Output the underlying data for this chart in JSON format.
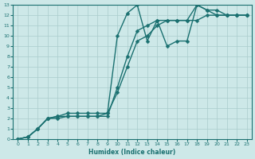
{
  "bg_color": "#cde8e8",
  "grid_color": "#aacccc",
  "line_color": "#1a7070",
  "marker": "D",
  "markersize": 2.5,
  "linewidth": 1.0,
  "xlabel": "Humidex (Indice chaleur)",
  "xlim": [
    -0.5,
    23.5
  ],
  "ylim": [
    0,
    13
  ],
  "xticks": [
    0,
    1,
    2,
    3,
    4,
    5,
    6,
    7,
    8,
    9,
    10,
    11,
    12,
    13,
    14,
    15,
    16,
    17,
    18,
    19,
    20,
    21,
    22,
    23
  ],
  "yticks": [
    0,
    1,
    2,
    3,
    4,
    5,
    6,
    7,
    8,
    9,
    10,
    11,
    12,
    13
  ],
  "series": [
    [
      [
        0,
        0
      ],
      [
        1,
        0.2
      ],
      [
        2,
        1
      ],
      [
        3,
        2
      ],
      [
        4,
        2.2
      ],
      [
        5,
        2.5
      ],
      [
        6,
        2.5
      ],
      [
        7,
        2.5
      ],
      [
        8,
        2.5
      ],
      [
        9,
        2.5
      ],
      [
        10,
        4.5
      ],
      [
        11,
        7
      ],
      [
        12,
        9.5
      ],
      [
        13,
        10
      ],
      [
        14,
        11
      ],
      [
        15,
        11.5
      ],
      [
        16,
        11.5
      ],
      [
        17,
        11.5
      ],
      [
        18,
        11.5
      ],
      [
        19,
        12
      ],
      [
        20,
        12
      ],
      [
        21,
        12
      ],
      [
        22,
        12
      ],
      [
        23,
        12
      ]
    ],
    [
      [
        0,
        0
      ],
      [
        1,
        0.2
      ],
      [
        2,
        1
      ],
      [
        3,
        2
      ],
      [
        4,
        2
      ],
      [
        5,
        2.2
      ],
      [
        6,
        2.2
      ],
      [
        7,
        2.2
      ],
      [
        8,
        2.2
      ],
      [
        9,
        2.5
      ],
      [
        10,
        10
      ],
      [
        11,
        12.2
      ],
      [
        12,
        13
      ],
      [
        13,
        9.5
      ],
      [
        14,
        11.5
      ],
      [
        15,
        9
      ],
      [
        16,
        9.5
      ],
      [
        17,
        9.5
      ],
      [
        18,
        13
      ],
      [
        19,
        12.5
      ],
      [
        20,
        12
      ],
      [
        21,
        12
      ],
      [
        22,
        12
      ],
      [
        23,
        12
      ]
    ],
    [
      [
        0,
        0
      ],
      [
        1,
        0.2
      ],
      [
        2,
        1
      ],
      [
        3,
        2
      ],
      [
        4,
        2.2
      ],
      [
        5,
        2.2
      ],
      [
        6,
        2.2
      ],
      [
        7,
        2.2
      ],
      [
        8,
        2.2
      ],
      [
        9,
        2.2
      ],
      [
        10,
        5
      ],
      [
        11,
        8
      ],
      [
        12,
        10.5
      ],
      [
        13,
        11
      ],
      [
        14,
        11.5
      ],
      [
        15,
        11.5
      ],
      [
        16,
        11.5
      ],
      [
        17,
        11.5
      ],
      [
        18,
        13
      ],
      [
        19,
        12.5
      ],
      [
        20,
        12.5
      ],
      [
        21,
        12
      ],
      [
        22,
        12
      ],
      [
        23,
        12
      ]
    ]
  ]
}
